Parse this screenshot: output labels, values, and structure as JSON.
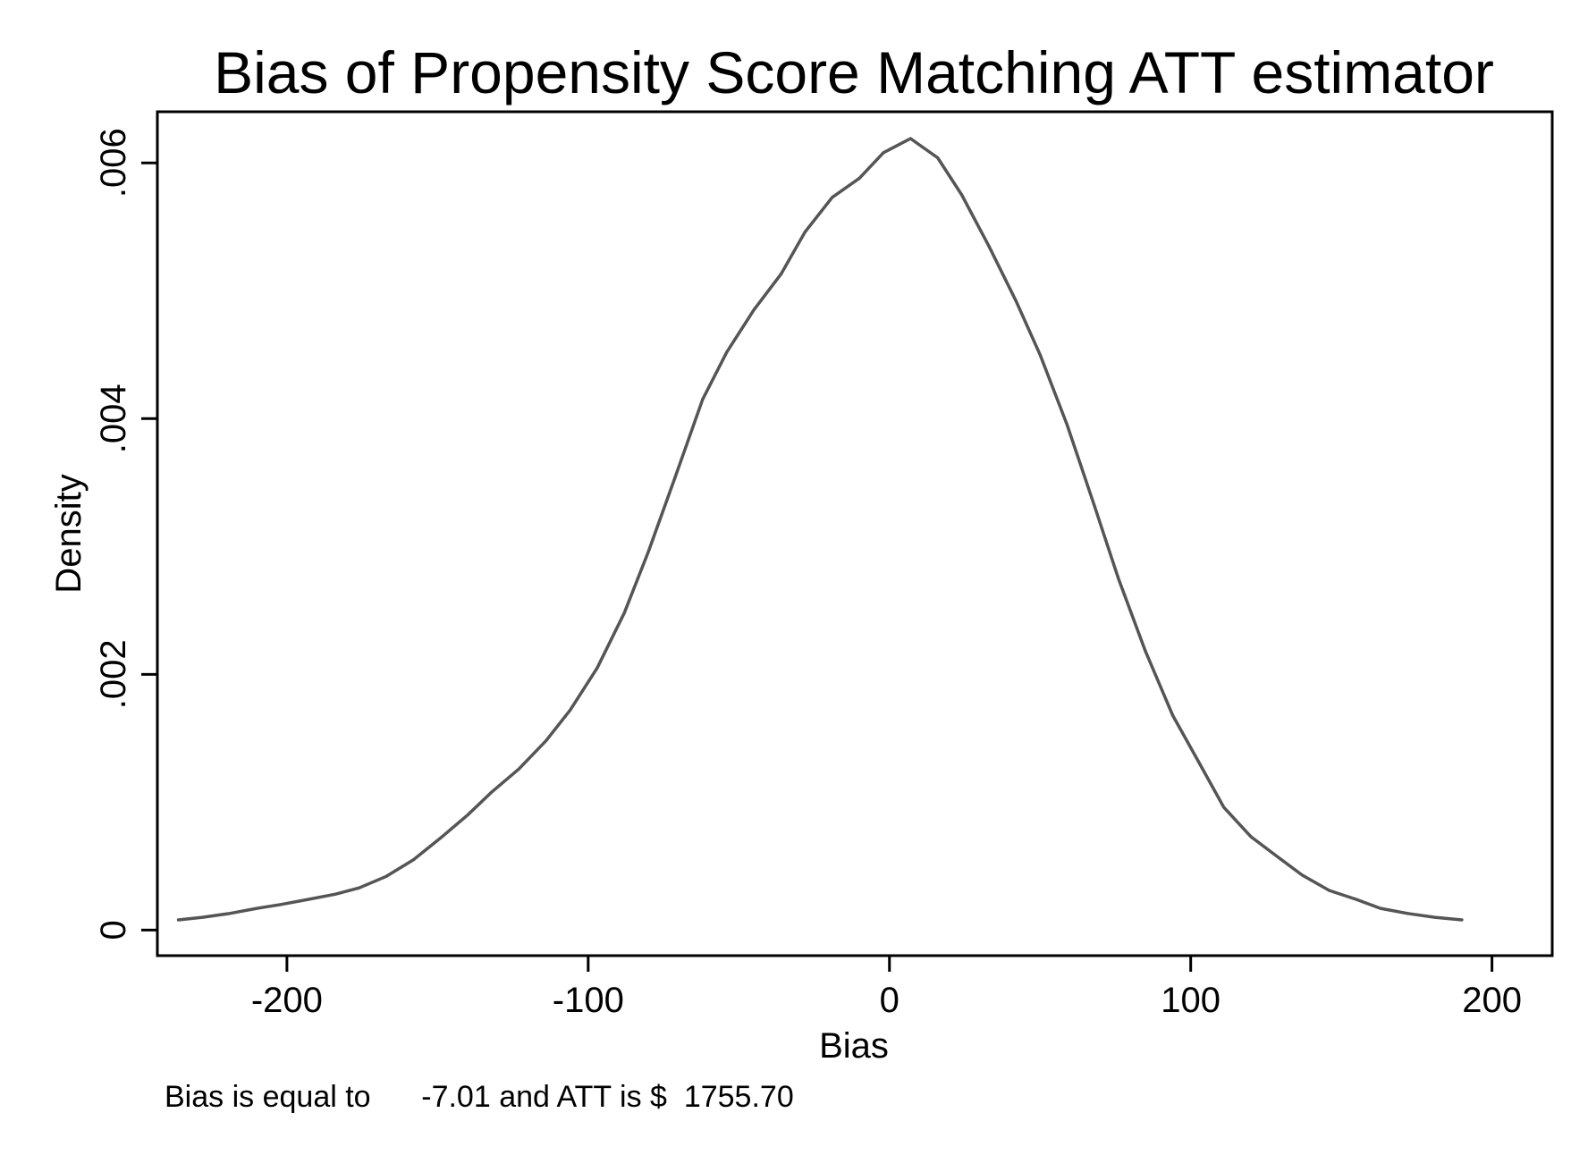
{
  "chart_data": {
    "type": "line",
    "title": "Bias of Propensity Score Matching ATT estimator",
    "xlabel": "Bias",
    "ylabel": "Density",
    "xlim": [
      -243,
      220
    ],
    "ylim": [
      -0.0002,
      0.0064
    ],
    "xticks": [
      -200,
      -100,
      0,
      100,
      200
    ],
    "xtick_labels": [
      "-200",
      "-100",
      "0",
      "100",
      "200"
    ],
    "yticks": [
      0,
      0.002,
      0.004,
      0.006
    ],
    "ytick_labels": [
      "0",
      ".002",
      ".004",
      ".006"
    ],
    "grid": false,
    "line_color": "#555555",
    "series": [
      {
        "x": [
          -236,
          -228,
          -219,
          -210,
          -202,
          -193,
          -184,
          -176,
          -167,
          -158,
          -149,
          -140,
          -132,
          -123,
          -114,
          -106,
          -97,
          -88,
          -80,
          -71,
          -62,
          -54,
          -45,
          -36,
          -28,
          -19,
          -10,
          -2,
          7,
          16,
          24,
          33,
          42,
          50,
          59,
          68,
          76,
          85,
          94,
          103,
          111,
          120,
          129,
          137,
          146,
          155,
          163,
          172,
          181,
          190
        ],
        "values": [
          8e-05,
          0.0001,
          0.00013,
          0.00017,
          0.0002,
          0.00024,
          0.00028,
          0.00033,
          0.00042,
          0.00055,
          0.00072,
          0.0009,
          0.00108,
          0.00126,
          0.00148,
          0.00172,
          0.00205,
          0.00248,
          0.00296,
          0.00355,
          0.00415,
          0.00452,
          0.00485,
          0.00513,
          0.00546,
          0.00573,
          0.00588,
          0.00608,
          0.00619,
          0.00604,
          0.00575,
          0.00535,
          0.00492,
          0.0045,
          0.00395,
          0.00332,
          0.00275,
          0.00218,
          0.00168,
          0.0013,
          0.00096,
          0.00073,
          0.00057,
          0.00043,
          0.00031,
          0.00024,
          0.00017,
          0.00013,
          0.0001,
          8e-05
        ]
      }
    ],
    "note": "Bias is equal to      -7.01 and ATT is $  1755.70"
  }
}
